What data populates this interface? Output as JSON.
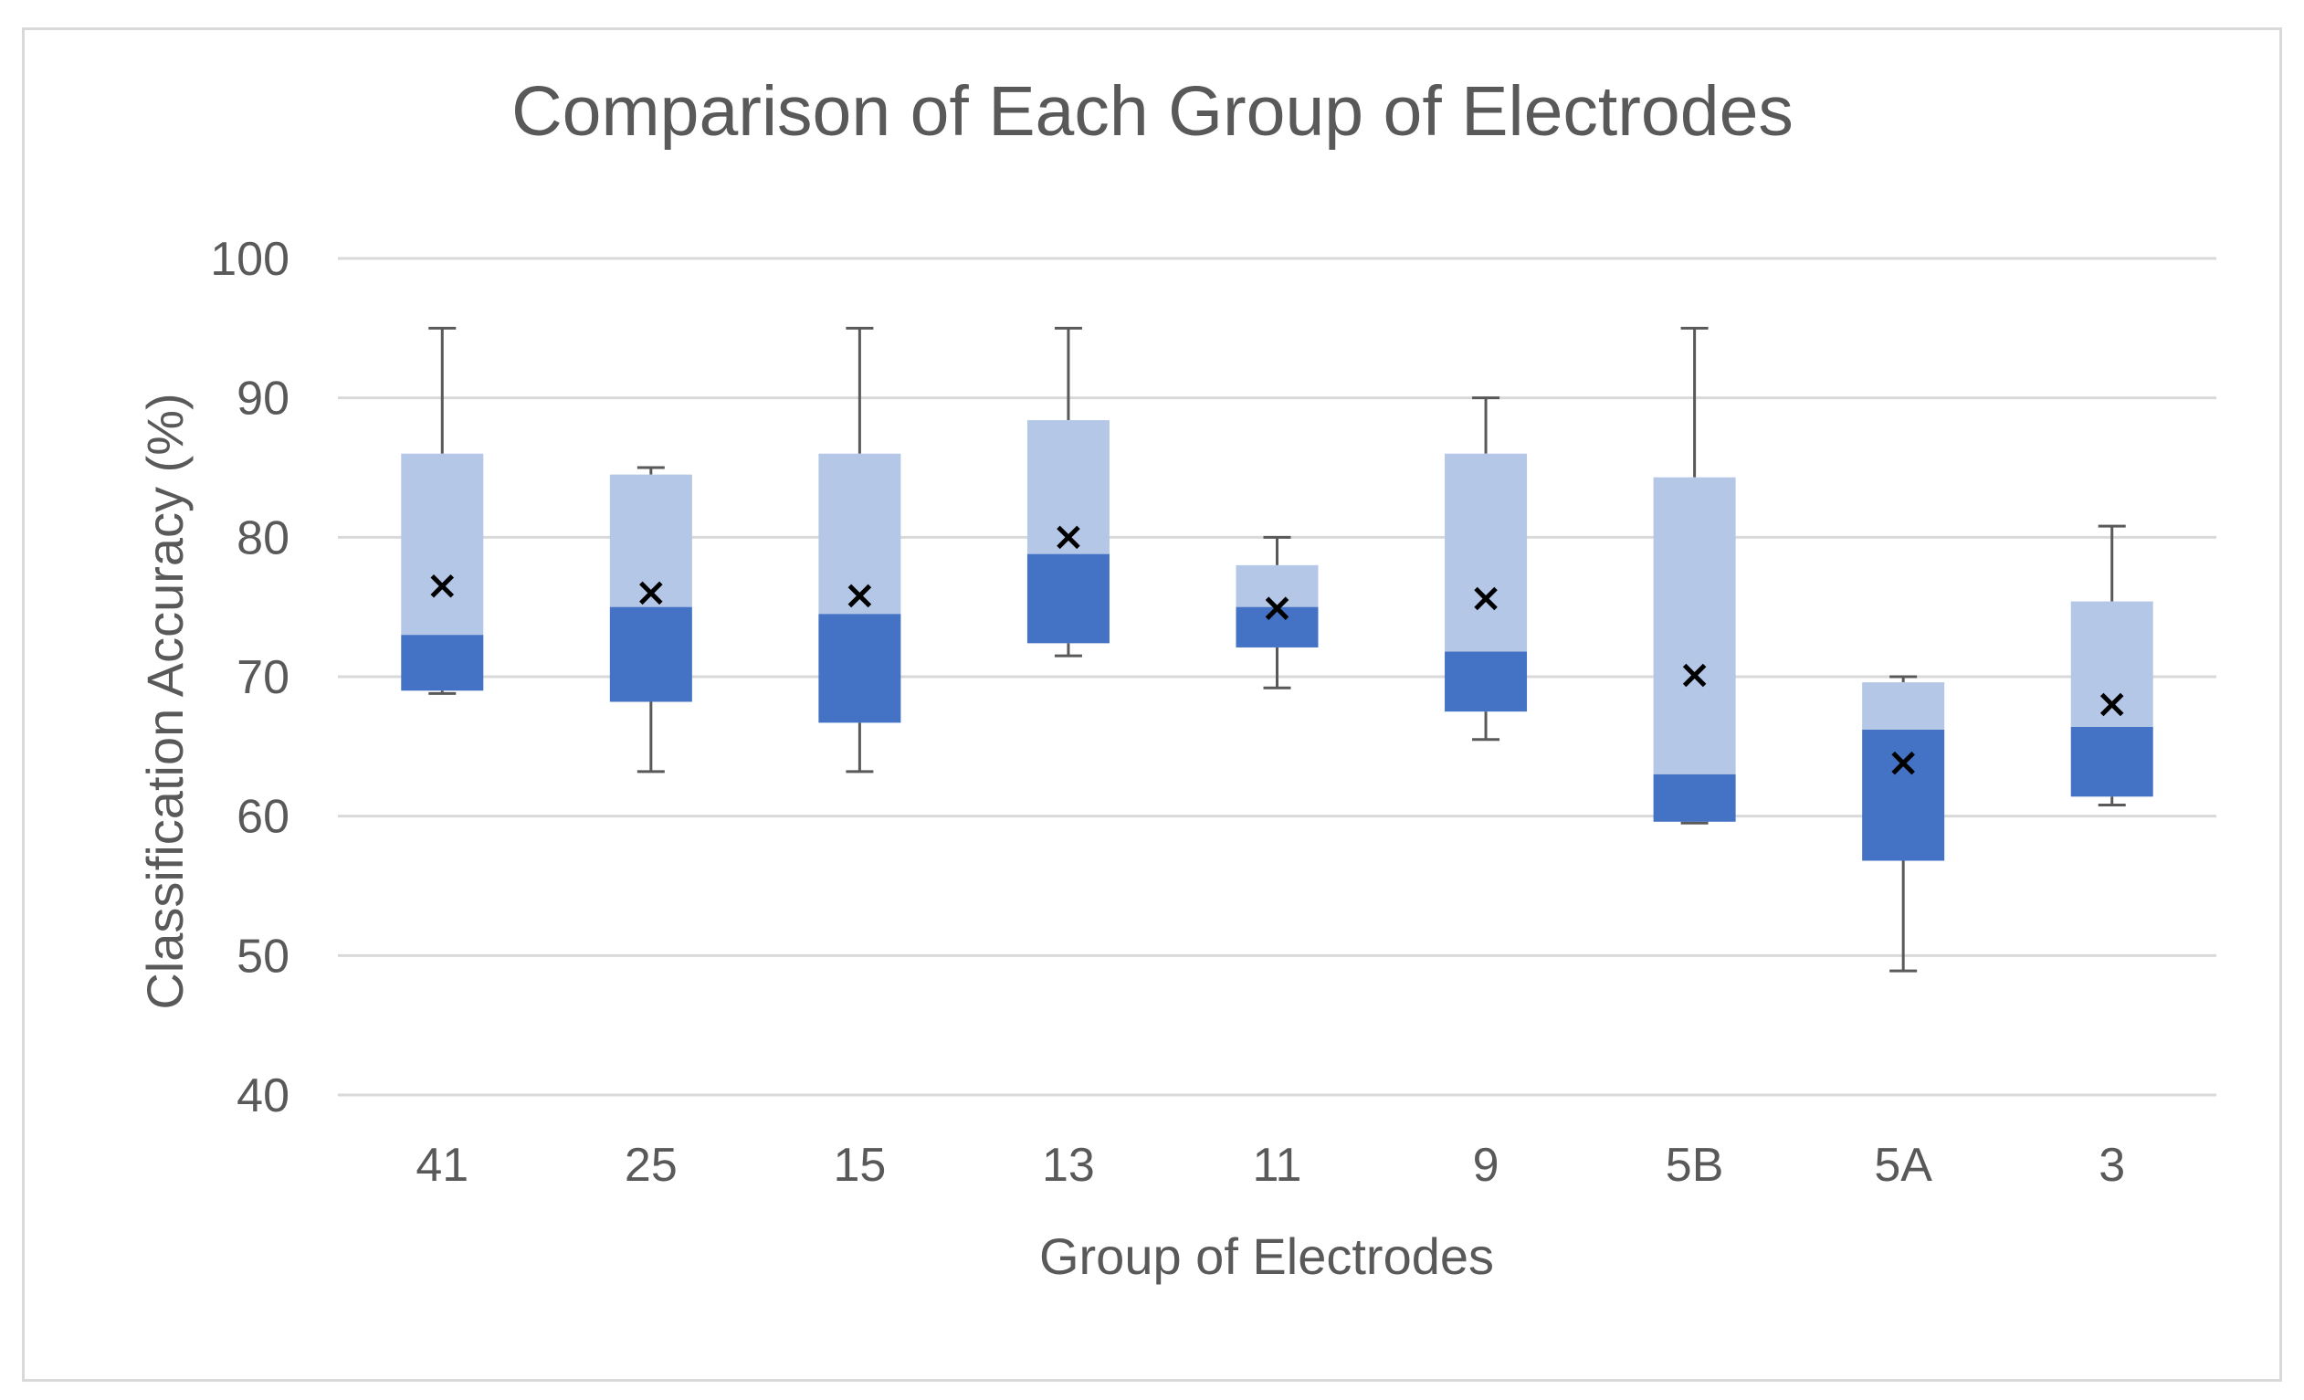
{
  "chart_data": {
    "type": "box",
    "title": "Comparison of Each Group of Electrodes",
    "xlabel": "Group of Electrodes",
    "ylabel": "Classification Accuracy (%)",
    "ylim": [
      40,
      100
    ],
    "yticks": [
      40,
      50,
      60,
      70,
      80,
      90,
      100
    ],
    "grid": true,
    "colors": {
      "upper_quartile": "#b4c7e7",
      "lower_quartile": "#4472c4",
      "whisker": "#595959",
      "mean_marker": "#000000",
      "grid": "#d9d9d9",
      "text": "#595959"
    },
    "categories": [
      "41",
      "25",
      "15",
      "13",
      "11",
      "9",
      "5B",
      "5A",
      "3"
    ],
    "series": [
      {
        "name": "41",
        "min": 68.8,
        "q1": 69.0,
        "median": 73.0,
        "q3": 86.0,
        "max": 95.0,
        "mean": 76.5
      },
      {
        "name": "25",
        "min": 63.2,
        "q1": 68.2,
        "median": 75.0,
        "q3": 84.5,
        "max": 85.0,
        "mean": 76.0
      },
      {
        "name": "15",
        "min": 63.2,
        "q1": 66.7,
        "median": 74.5,
        "q3": 86.0,
        "max": 95.0,
        "mean": 75.8
      },
      {
        "name": "13",
        "min": 71.5,
        "q1": 72.4,
        "median": 78.8,
        "q3": 88.4,
        "max": 95.0,
        "mean": 80.0
      },
      {
        "name": "11",
        "min": 69.2,
        "q1": 72.1,
        "median": 75.0,
        "q3": 78.0,
        "max": 80.0,
        "mean": 74.9
      },
      {
        "name": "9",
        "min": 65.5,
        "q1": 67.5,
        "median": 71.8,
        "q3": 86.0,
        "max": 90.0,
        "mean": 75.6
      },
      {
        "name": "5B",
        "min": 59.5,
        "q1": 59.6,
        "median": 63.0,
        "q3": 84.3,
        "max": 95.0,
        "mean": 70.1
      },
      {
        "name": "5A",
        "min": 48.9,
        "q1": 56.8,
        "median": 66.2,
        "q3": 69.6,
        "max": 70.0,
        "mean": 63.8
      },
      {
        "name": "3",
        "min": 60.8,
        "q1": 61.4,
        "median": 66.4,
        "q3": 75.4,
        "max": 80.8,
        "mean": 68.0
      }
    ]
  }
}
